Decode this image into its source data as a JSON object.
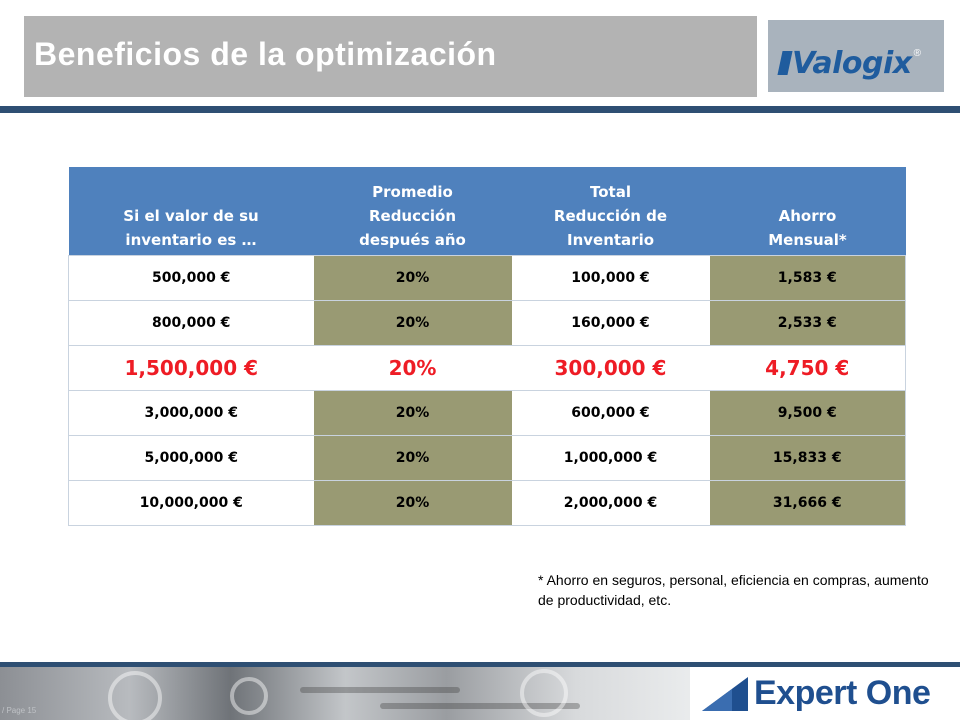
{
  "slide": {
    "title": "Beneficios de la optimización",
    "logo_text": "Valogix",
    "logo_reg": "®",
    "brand_text": "Expert One",
    "page_label": "/ Page 15",
    "footnote": "* Ahorro en seguros, personal, eficiencia en compras, aumento de productividad, etc."
  },
  "table": {
    "headers": [
      "Si el valor de su\ninventario es …",
      "Promedio\nReducción\ndespués año",
      "Total\nReducción de\nInventario",
      "Ahorro\nMensual*"
    ],
    "rows": [
      [
        "500,000 €",
        "20%",
        "100,000 €",
        "1,583 €"
      ],
      [
        "800,000 €",
        "20%",
        "160,000 €",
        "2,533 €"
      ],
      [
        "1,500,000 €",
        "20%",
        "300,000 €",
        "4,750 €"
      ],
      [
        "3,000,000 €",
        "20%",
        "600,000 €",
        "9,500 €"
      ],
      [
        "5,000,000 €",
        "20%",
        "1,000,000 €",
        "15,833 €"
      ],
      [
        "10,000,000 €",
        "20%",
        "2,000,000 €",
        "31,666 €"
      ]
    ],
    "highlight_row": 2
  },
  "colors": {
    "header_blue": "#4f81bd",
    "olive": "#999a73",
    "highlight_red": "#ee1c25",
    "rule_navy": "#2e4f73",
    "brand_blue": "#1f4f8f"
  }
}
